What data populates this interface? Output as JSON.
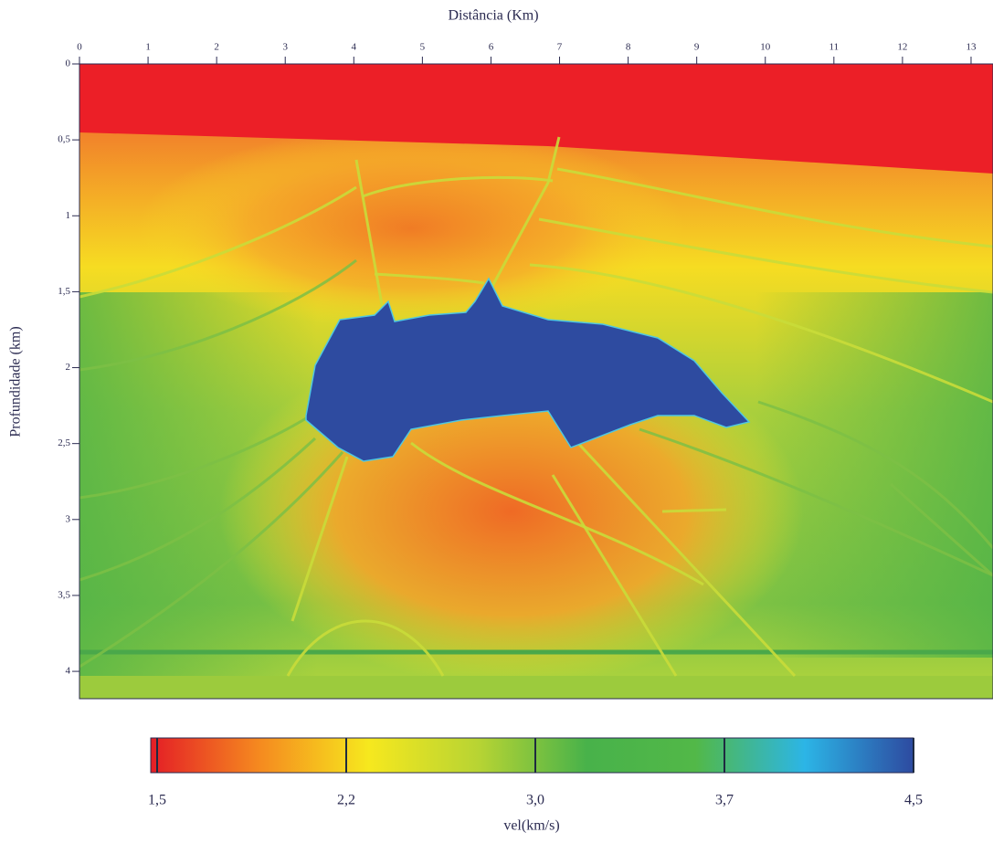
{
  "chart_data": {
    "type": "image",
    "title": "Distância (Km)",
    "y_label": "Profundidade (km)",
    "xlim": [
      0,
      13.32
    ],
    "xticks": [
      0,
      1,
      2,
      3,
      4,
      5,
      6,
      7,
      8,
      9,
      10,
      11,
      12,
      13
    ],
    "ylim": [
      0,
      4.18
    ],
    "y_inverted": true,
    "yticks": [
      0,
      {
        "value": 0.5,
        "label": "0,5"
      },
      1,
      {
        "value": 1.5,
        "label": "1,5"
      },
      2,
      {
        "value": 2.5,
        "label": "2,5"
      },
      3,
      {
        "value": 3.5,
        "label": "3,5"
      },
      4
    ],
    "colorbar": {
      "label": "vel(km/s)",
      "ticks": [
        {
          "value": 1.5,
          "label": "1,5"
        },
        {
          "value": 2.2,
          "label": "2,2"
        },
        {
          "value": 3.0,
          "label": "3,0"
        },
        {
          "value": 3.7,
          "label": "3,7"
        },
        {
          "value": 4.5,
          "label": "4,5"
        }
      ],
      "colors": [
        "#e41e26",
        "#f58a1f",
        "#f6e81e",
        "#b8d433",
        "#48b24a",
        "#52b848",
        "#2cb5e6",
        "#2d4aa0"
      ]
    }
  }
}
